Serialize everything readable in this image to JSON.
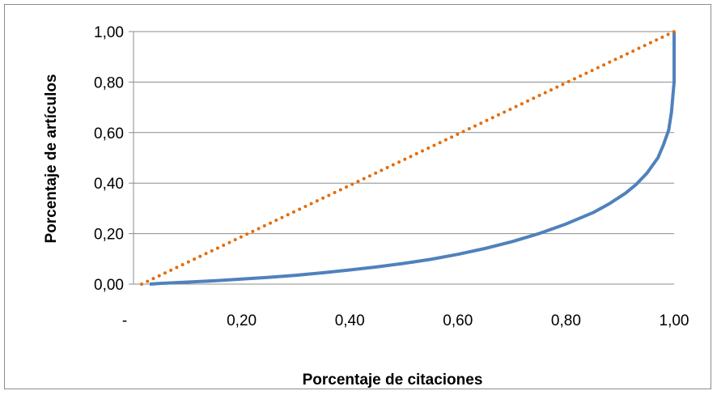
{
  "chart_data": {
    "type": "line",
    "title": "",
    "xlabel": "Porcentaje de citaciones",
    "ylabel": "Porcentaje de artículos",
    "xlim": [
      0,
      1
    ],
    "ylim": [
      0,
      1
    ],
    "x_tick_labels": [
      "-",
      "0,20",
      "0,40",
      "0,60",
      "0,80",
      "1,00"
    ],
    "x_ticks": [
      0,
      0.2,
      0.4,
      0.6,
      0.8,
      1.0
    ],
    "y_tick_labels": [
      "0,00",
      "0,20",
      "0,40",
      "0,60",
      "0,80",
      "1,00"
    ],
    "y_ticks": [
      0,
      0.2,
      0.4,
      0.6,
      0.8,
      1.0
    ],
    "grid": "horizontal",
    "legend": "none",
    "series": [
      {
        "color": "#4f81bd",
        "style": "solid",
        "x": [
          0.03,
          0.05,
          0.1,
          0.15,
          0.2,
          0.25,
          0.3,
          0.35,
          0.4,
          0.45,
          0.5,
          0.55,
          0.6,
          0.65,
          0.7,
          0.75,
          0.8,
          0.85,
          0.88,
          0.91,
          0.93,
          0.95,
          0.97,
          0.98,
          0.99,
          0.995,
          1.0,
          1.0
        ],
        "y": [
          0.0,
          0.003,
          0.008,
          0.013,
          0.02,
          0.027,
          0.035,
          0.045,
          0.056,
          0.068,
          0.082,
          0.098,
          0.118,
          0.141,
          0.168,
          0.2,
          0.238,
          0.283,
          0.318,
          0.36,
          0.395,
          0.44,
          0.5,
          0.55,
          0.61,
          0.68,
          0.8,
          1.0
        ]
      },
      {
        "color": "#e46c0a",
        "style": "dotted",
        "x": [
          0.015,
          1.0
        ],
        "y": [
          0.0,
          1.0
        ]
      }
    ]
  }
}
